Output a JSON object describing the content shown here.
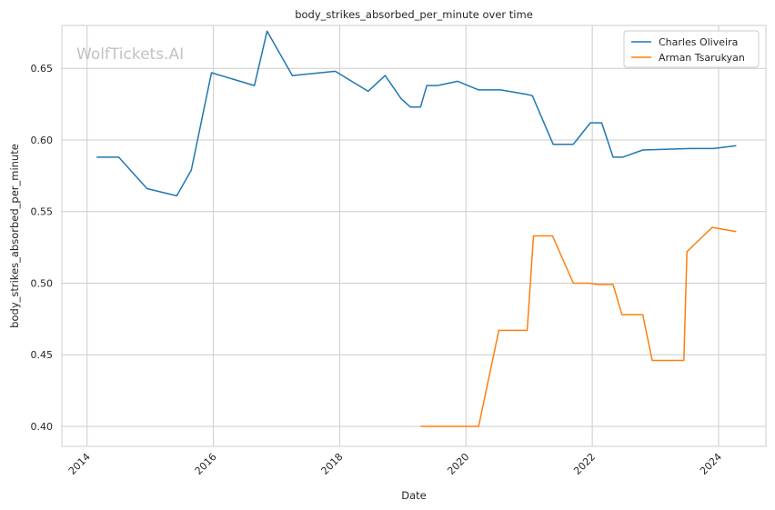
{
  "chart_data": {
    "type": "line",
    "title": "body_strikes_absorbed_per_minute over time",
    "xlabel": "Date",
    "ylabel": "body_strikes_absorbed_per_minute",
    "watermark": "WolfTickets.AI",
    "xlim": [
      2013.6,
      2024.75
    ],
    "ylim": [
      0.386,
      0.68
    ],
    "x_ticks": [
      2014,
      2016,
      2018,
      2020,
      2022,
      2024
    ],
    "y_ticks": [
      0.4,
      0.45,
      0.5,
      0.55,
      0.6,
      0.65
    ],
    "y_tick_labels": [
      "0.40",
      "0.45",
      "0.50",
      "0.55",
      "0.60",
      "0.65"
    ],
    "grid": true,
    "legend_position": "top-right",
    "colors": {
      "Charles Oliveira": "#1f77b4",
      "Arman Tsarukyan": "#ff7f0e"
    },
    "series": [
      {
        "name": "Charles Oliveira",
        "color": "#1f77b4",
        "x": [
          2014.15,
          2014.5,
          2014.95,
          2015.42,
          2015.65,
          2015.97,
          2016.65,
          2016.85,
          2017.25,
          2017.93,
          2018.45,
          2018.72,
          2018.97,
          2019.12,
          2019.28,
          2019.38,
          2019.55,
          2019.87,
          2020.2,
          2020.55,
          2020.95,
          2021.05,
          2021.38,
          2021.7,
          2021.97,
          2022.15,
          2022.33,
          2022.48,
          2022.8,
          2023.55,
          2023.92,
          2024.28
        ],
        "y": [
          0.588,
          0.588,
          0.566,
          0.561,
          0.579,
          0.647,
          0.638,
          0.676,
          0.645,
          0.648,
          0.634,
          0.645,
          0.629,
          0.623,
          0.623,
          0.638,
          0.638,
          0.641,
          0.635,
          0.635,
          0.632,
          0.631,
          0.597,
          0.597,
          0.612,
          0.612,
          0.588,
          0.588,
          0.593,
          0.594,
          0.594,
          0.596
        ]
      },
      {
        "name": "Arman Tsarukyan",
        "color": "#ff7f0e",
        "x": [
          2019.28,
          2020.2,
          2020.52,
          2020.97,
          2021.07,
          2021.37,
          2021.7,
          2021.95,
          2022.1,
          2022.33,
          2022.47,
          2022.8,
          2022.95,
          2023.45,
          2023.5,
          2023.9,
          2024.28
        ],
        "y": [
          0.4,
          0.4,
          0.467,
          0.467,
          0.533,
          0.533,
          0.5,
          0.5,
          0.499,
          0.499,
          0.478,
          0.478,
          0.446,
          0.446,
          0.522,
          0.539,
          0.536
        ]
      }
    ]
  }
}
